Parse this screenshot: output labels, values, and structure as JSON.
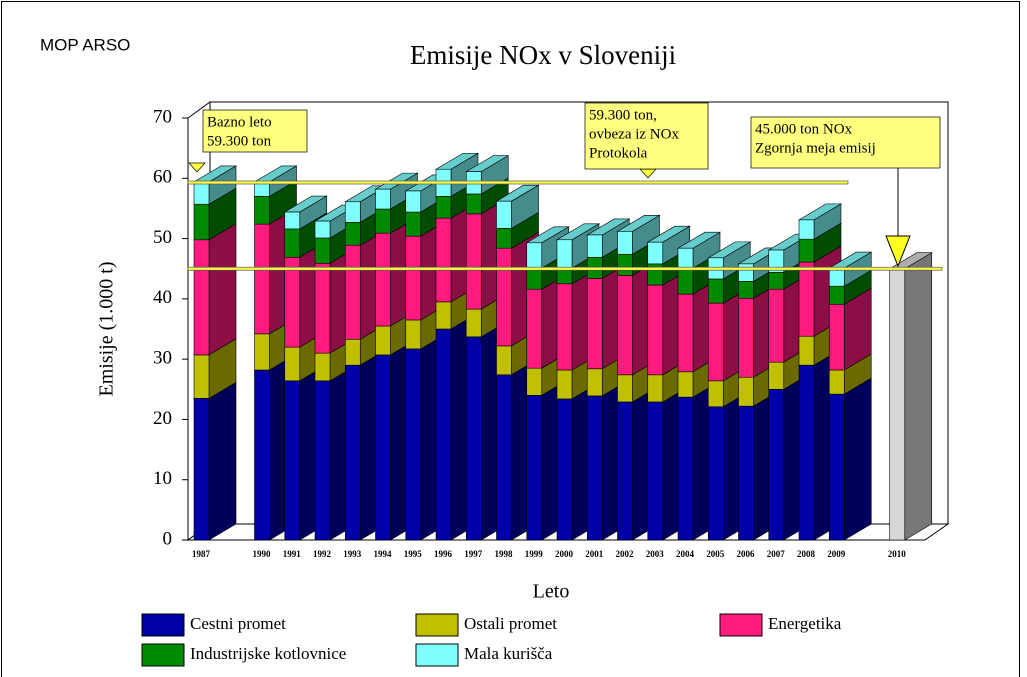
{
  "source": "MOP ARSO",
  "chart_data": {
    "type": "bar3d_stacked",
    "title": "Emisije NOx v Sloveniji",
    "y_label": "Emisije (1.000 t)",
    "x_label": "Leto",
    "categories": [
      "1987",
      null,
      "1990",
      "1991",
      "1992",
      "1993",
      "1994",
      "1995",
      "1996",
      "1997",
      "1998",
      "1999",
      "2000",
      "2001",
      "2002",
      "2003",
      "2004",
      "2005",
      "2006",
      "2007",
      "2008",
      "2009",
      null,
      "2010"
    ],
    "series": [
      {
        "name": "Cestni promet",
        "color": "#0000a8",
        "values": [
          23.5,
          null,
          28.2,
          26.4,
          26.4,
          29.0,
          30.7,
          31.7,
          35.0,
          33.7,
          27.4,
          24.0,
          23.4,
          23.9,
          22.9,
          22.9,
          23.7,
          22.1,
          22.2,
          25.0,
          29.0,
          24.2,
          null,
          null
        ]
      },
      {
        "name": "Ostali promet",
        "color": "#c0c000",
        "values": [
          7.2,
          null,
          6.0,
          5.6,
          4.6,
          4.3,
          4.8,
          4.8,
          4.5,
          4.6,
          4.8,
          4.5,
          4.8,
          4.5,
          4.5,
          4.5,
          4.2,
          4.3,
          4.8,
          4.5,
          4.8,
          4.0,
          null,
          null
        ]
      },
      {
        "name": "Energetika",
        "color": "#ff1a80",
        "values": [
          19.1,
          null,
          18.2,
          14.9,
          14.9,
          15.6,
          15.4,
          13.9,
          13.9,
          15.8,
          16.2,
          13.1,
          14.3,
          15.0,
          16.5,
          14.9,
          12.9,
          12.9,
          13.1,
          12.1,
          12.3,
          10.9,
          null,
          null
        ]
      },
      {
        "name": "Industrijske kotlovnice",
        "color": "#008a00",
        "values": [
          5.9,
          null,
          4.6,
          4.7,
          4.2,
          3.8,
          4.0,
          4.0,
          3.6,
          3.3,
          3.3,
          3.5,
          2.6,
          3.5,
          3.5,
          3.5,
          4.3,
          4.0,
          2.8,
          2.8,
          3.8,
          3.0,
          null,
          null
        ]
      },
      {
        "name": "Mala kurišča",
        "color": "#80ffff",
        "values": [
          3.7,
          null,
          2.4,
          2.8,
          2.8,
          3.4,
          3.3,
          3.5,
          4.5,
          3.7,
          4.5,
          4.2,
          4.7,
          3.7,
          3.8,
          3.6,
          3.3,
          3.5,
          2.9,
          3.7,
          3.2,
          3.0,
          null,
          null
        ]
      },
      {
        "color": "#d8d8d8",
        "values": [
          null,
          null,
          null,
          null,
          null,
          null,
          null,
          null,
          null,
          null,
          null,
          null,
          null,
          null,
          null,
          null,
          null,
          null,
          null,
          null,
          null,
          null,
          null,
          45
        ]
      }
    ],
    "ylim": [
      0,
      70
    ],
    "yticks": [
      0,
      10,
      20,
      30,
      40,
      50,
      60,
      70
    ],
    "grid": false,
    "reference_lines": [
      59.3,
      45
    ],
    "annotations": [
      {
        "lines": [
          "Bazno leto",
          "59.300 ton"
        ]
      },
      {
        "lines": [
          "59.300 ton,",
          "ovbeza iz NOx",
          "Protokola"
        ]
      },
      {
        "lines": [
          "45.000 ton NOx",
          "Zgornja meja emisij"
        ]
      }
    ]
  }
}
